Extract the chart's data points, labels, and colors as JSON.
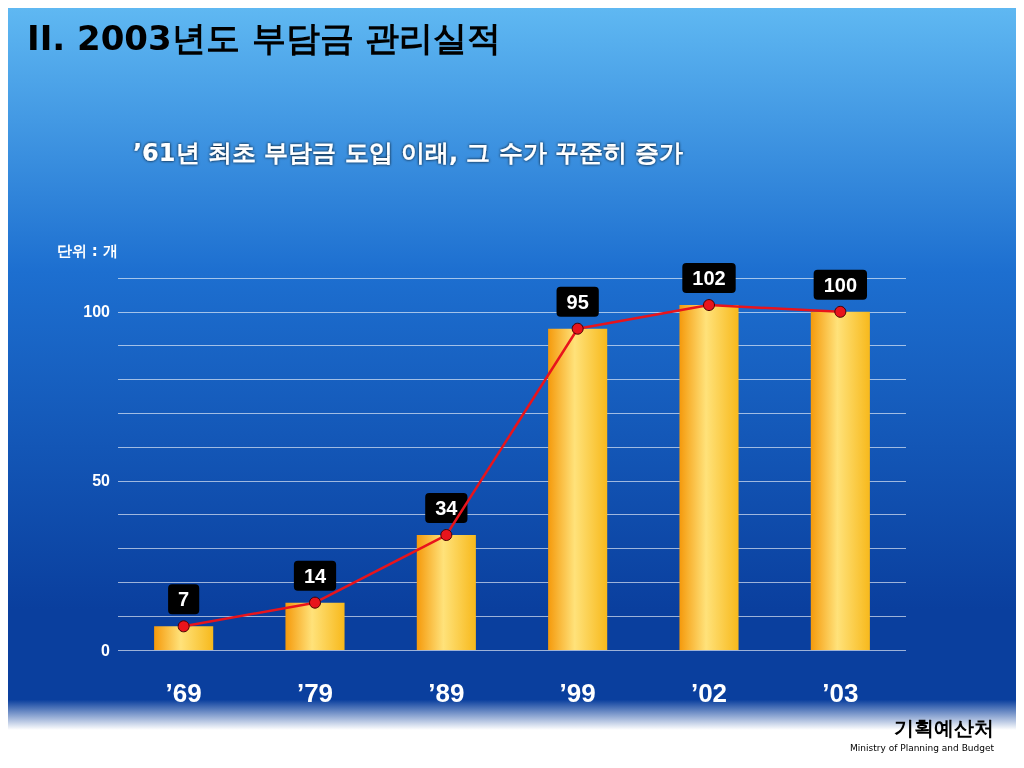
{
  "chart_data": {
    "type": "bar",
    "title": "II. 2003년도 부담금 관리실적",
    "subtitle": "’61년 최초 부담금 도입 이래, 그 수가 꾸준히 증가",
    "ylabel": "단위 : 개",
    "categories": [
      "’69",
      "’79",
      "’89",
      "’99",
      "’02",
      "’03"
    ],
    "series": [
      {
        "color": "#f7b91c",
        "values": [
          7,
          14,
          34,
          95,
          102,
          100
        ],
        "value_labels": [
          "7",
          "14",
          "34",
          "95",
          "102",
          "100"
        ]
      },
      {
        "type": "line",
        "color": "#e8141c",
        "values": [
          7,
          14,
          34,
          95,
          102,
          100
        ]
      }
    ],
    "ylim": [
      0,
      110
    ],
    "yticks": [
      0,
      {
        "value": 10,
        "label": null
      },
      {
        "value": 20,
        "label": null
      },
      {
        "value": 30,
        "label": null
      },
      {
        "value": 40,
        "label": null
      },
      50,
      {
        "value": 60,
        "label": null
      },
      {
        "value": 70,
        "label": null
      },
      {
        "value": 80,
        "label": null
      },
      {
        "value": 90,
        "label": null
      },
      100,
      {
        "value": 110,
        "label": null
      }
    ],
    "grid": "y",
    "marker": "circle",
    "line_style": "solid",
    "annotations": [
      "기획예산처",
      "Ministry of Planning and Budget"
    ]
  }
}
